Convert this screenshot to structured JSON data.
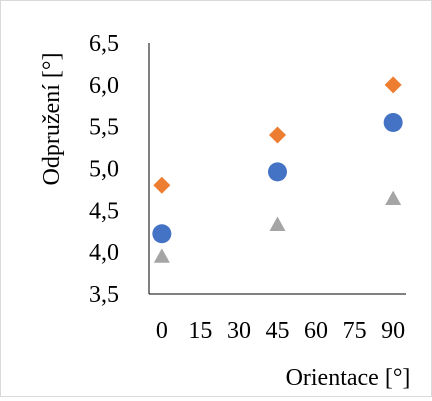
{
  "chart_data": {
    "type": "scatter",
    "xlabel": "Orientace [°]",
    "ylabel": "Odpružení [°]",
    "xlim": [
      -5,
      95
    ],
    "ylim": [
      3.5,
      6.5
    ],
    "x_ticks": [
      "0",
      "15",
      "30",
      "45",
      "60",
      "75",
      "90"
    ],
    "x_tick_values": [
      0,
      15,
      30,
      45,
      60,
      75,
      90
    ],
    "y_ticks": [
      "6,5",
      "6,0",
      "5,5",
      "5,0",
      "4,5",
      "4,0",
      "3,5"
    ],
    "y_tick_values": [
      6.5,
      6.0,
      5.5,
      5.0,
      4.5,
      4.0,
      3.5
    ],
    "grid": false,
    "series": [
      {
        "marker": "circle",
        "color": "#4472c4",
        "x": [
          0,
          45,
          90
        ],
        "y": [
          4.22,
          4.96,
          5.55
        ]
      },
      {
        "marker": "diamond",
        "color": "#ed7d31",
        "x": [
          0,
          45,
          90
        ],
        "y": [
          4.8,
          5.4,
          6.0
        ]
      },
      {
        "marker": "triangle",
        "color": "#a5a5a5",
        "x": [
          0,
          45,
          90
        ],
        "y": [
          3.95,
          4.33,
          4.64
        ]
      }
    ]
  }
}
